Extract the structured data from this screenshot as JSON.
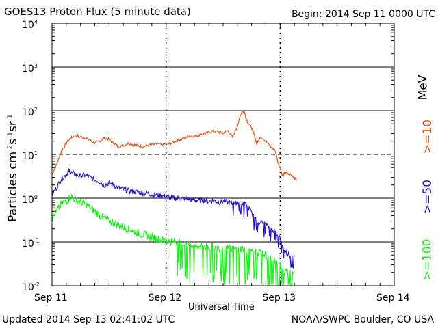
{
  "header": {
    "title": "GOES13 Proton Flux (5 minute data)",
    "begin": "Begin: 2014 Sep 11 0000 UTC"
  },
  "footer": {
    "updated": "Updated 2014 Sep 13 02:41:02 UTC",
    "credit": "NOAA/SWPC Boulder, CO USA"
  },
  "chart_data": {
    "type": "line",
    "title": "GOES13 Proton Flux (5 minute data)",
    "xlabel": "Universal Time",
    "ylabel": "Particles cm-2 s-1 sr-1",
    "yscale": "log",
    "ylim_exponents": [
      -2,
      4
    ],
    "x_ticks": [
      "Sep 11",
      "Sep 12",
      "Sep 13",
      "Sep 14"
    ],
    "y_tick_base": "10",
    "y_tick_exponents": [
      "-2",
      "-1",
      "0",
      "1",
      "2",
      "3",
      "4"
    ],
    "xlim_hours": [
      0,
      72
    ],
    "legend_unit": "MeV",
    "series": [
      {
        "name": ">=10",
        "color": "#e65a20",
        "points": [
          [
            0,
            3.5
          ],
          [
            1,
            6
          ],
          [
            2,
            12
          ],
          [
            3,
            18
          ],
          [
            4,
            24
          ],
          [
            5,
            27
          ],
          [
            6,
            25
          ],
          [
            7,
            24
          ],
          [
            8,
            21
          ],
          [
            9,
            18
          ],
          [
            10,
            20
          ],
          [
            11,
            24
          ],
          [
            12,
            22
          ],
          [
            13,
            18
          ],
          [
            14,
            15
          ],
          [
            15,
            16
          ],
          [
            16,
            18
          ],
          [
            17,
            17
          ],
          [
            18,
            16
          ],
          [
            19,
            15
          ],
          [
            20,
            16
          ],
          [
            21,
            17
          ],
          [
            22,
            17
          ],
          [
            24,
            17
          ],
          [
            25,
            18
          ],
          [
            26,
            20
          ],
          [
            27,
            22
          ],
          [
            28,
            24
          ],
          [
            29,
            27
          ],
          [
            30,
            26
          ],
          [
            31,
            28
          ],
          [
            32,
            30
          ],
          [
            33,
            32
          ],
          [
            34,
            34
          ],
          [
            35,
            33
          ],
          [
            36,
            30
          ],
          [
            37,
            35
          ],
          [
            38,
            25
          ],
          [
            39,
            45
          ],
          [
            40,
            100
          ],
          [
            40.5,
            90
          ],
          [
            41,
            60
          ],
          [
            42,
            40
          ],
          [
            42.5,
            30
          ],
          [
            43,
            18
          ],
          [
            43.5,
            22
          ],
          [
            44,
            25
          ],
          [
            45,
            20
          ],
          [
            46,
            15
          ],
          [
            47,
            12
          ],
          [
            47.5,
            7
          ],
          [
            48,
            5
          ],
          [
            48.5,
            3.2
          ],
          [
            49,
            3.8
          ],
          [
            50,
            3.5
          ],
          [
            51,
            3.0
          ],
          [
            51.5,
            2.6
          ]
        ]
      },
      {
        "name": ">=50",
        "color": "#2a1ac0",
        "points": [
          [
            0,
            1.2
          ],
          [
            1,
            1.8
          ],
          [
            2,
            2.8
          ],
          [
            3,
            3.4
          ],
          [
            3.5,
            4.2
          ],
          [
            4,
            3.8
          ],
          [
            5,
            3.5
          ],
          [
            6,
            3.2
          ],
          [
            7,
            3.4
          ],
          [
            8,
            3.0
          ],
          [
            9,
            2.6
          ],
          [
            10,
            2.4
          ],
          [
            11,
            2.0
          ],
          [
            12,
            2.2
          ],
          [
            13,
            2.0
          ],
          [
            14,
            1.7
          ],
          [
            15,
            1.6
          ],
          [
            16,
            1.5
          ],
          [
            17,
            1.4
          ],
          [
            18,
            1.4
          ],
          [
            19,
            1.3
          ],
          [
            20,
            1.3
          ],
          [
            21,
            1.2
          ],
          [
            22,
            1.2
          ],
          [
            23,
            1.15
          ],
          [
            24,
            1.1
          ],
          [
            25,
            1.0
          ],
          [
            26,
            1.0
          ],
          [
            27,
            1.0
          ],
          [
            28,
            0.98
          ],
          [
            29,
            0.95
          ],
          [
            30,
            0.9
          ],
          [
            31,
            0.88
          ],
          [
            32,
            0.9
          ],
          [
            33,
            0.85
          ],
          [
            34,
            0.9
          ],
          [
            35,
            0.8
          ],
          [
            36,
            0.85
          ],
          [
            37,
            0.8
          ],
          [
            38,
            0.75
          ],
          [
            39,
            0.8
          ],
          [
            40,
            0.75
          ],
          [
            41,
            0.7
          ],
          [
            42,
            0.45
          ],
          [
            43,
            0.3
          ],
          [
            44,
            0.28
          ],
          [
            45,
            0.25
          ],
          [
            46,
            0.2
          ],
          [
            47,
            0.18
          ],
          [
            48,
            0.12
          ],
          [
            48.5,
            0.08
          ],
          [
            49,
            0.06
          ],
          [
            50,
            0.05
          ],
          [
            51,
            0.05
          ]
        ]
      },
      {
        "name": ">=100",
        "color": "#22ee22",
        "points": [
          [
            0,
            0.35
          ],
          [
            1,
            0.5
          ],
          [
            2,
            0.75
          ],
          [
            3,
            0.85
          ],
          [
            4,
            1.1
          ],
          [
            5,
            0.9
          ],
          [
            6,
            0.8
          ],
          [
            7,
            0.75
          ],
          [
            8,
            0.6
          ],
          [
            9,
            0.5
          ],
          [
            10,
            0.4
          ],
          [
            11,
            0.35
          ],
          [
            12,
            0.3
          ],
          [
            13,
            0.28
          ],
          [
            14,
            0.24
          ],
          [
            15,
            0.22
          ],
          [
            16,
            0.2
          ],
          [
            17,
            0.18
          ],
          [
            18,
            0.16
          ],
          [
            19,
            0.15
          ],
          [
            20,
            0.14
          ],
          [
            21,
            0.13
          ],
          [
            22,
            0.12
          ],
          [
            23,
            0.11
          ],
          [
            24,
            0.11
          ],
          [
            25,
            0.1
          ],
          [
            26,
            0.1
          ],
          [
            27,
            0.09
          ],
          [
            28,
            0.09
          ],
          [
            29,
            0.09
          ],
          [
            30,
            0.08
          ],
          [
            31,
            0.085
          ],
          [
            32,
            0.08
          ],
          [
            33,
            0.075
          ],
          [
            34,
            0.08
          ],
          [
            35,
            0.07
          ],
          [
            36,
            0.075
          ],
          [
            37,
            0.07
          ],
          [
            38,
            0.07
          ],
          [
            39,
            0.065
          ],
          [
            40,
            0.07
          ],
          [
            41,
            0.065
          ],
          [
            42,
            0.06
          ],
          [
            43,
            0.06
          ],
          [
            44,
            0.055
          ],
          [
            45,
            0.05
          ],
          [
            46,
            0.04
          ],
          [
            47,
            0.035
          ],
          [
            48,
            0.03
          ],
          [
            49,
            0.02
          ],
          [
            50,
            0.02
          ],
          [
            51,
            0.02
          ]
        ]
      }
    ]
  }
}
